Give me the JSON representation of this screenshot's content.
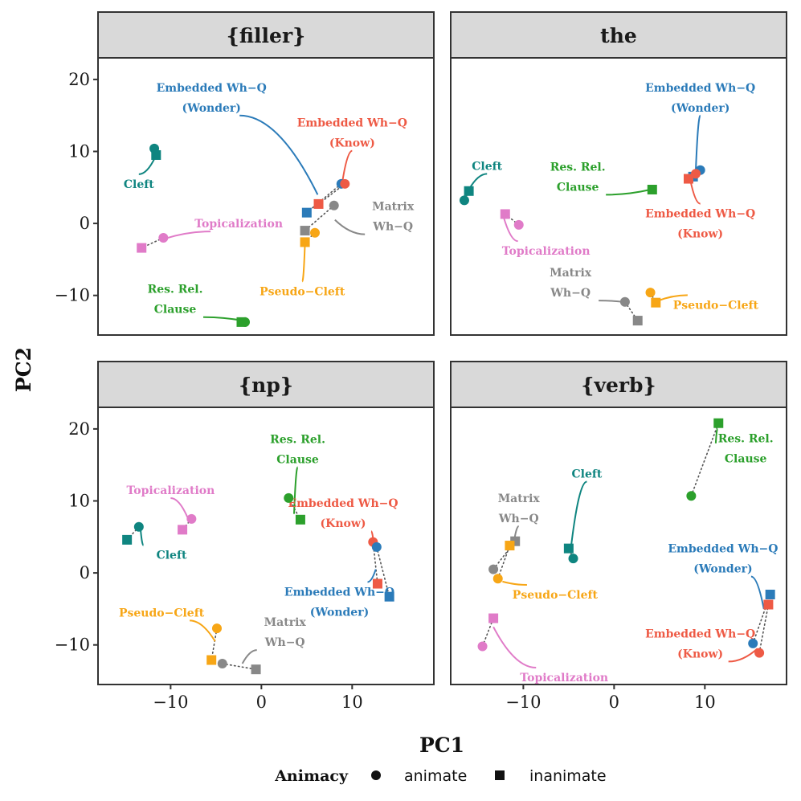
{
  "chart_data": {
    "type": "scatter",
    "xlabel": "PC1",
    "ylabel": "PC2",
    "xlim": [
      -18,
      19
    ],
    "ylim": [
      -15.5,
      23
    ],
    "x_ticks": [
      -10,
      0,
      10
    ],
    "y_ticks": [
      -10,
      0,
      10,
      20
    ],
    "tick_labels": {
      "x": [
        "−10",
        "0",
        "10"
      ],
      "y": [
        "−10",
        "0",
        "10",
        "20"
      ]
    },
    "legend": {
      "title": "Animacy",
      "position": "bottom",
      "items": [
        {
          "label": "animate",
          "shape": "circle"
        },
        {
          "label": "inanimate",
          "shape": "square"
        }
      ]
    },
    "colors": {
      "Embedded Wh-Q (Wonder)": "#2B7BB9",
      "Embedded Wh-Q (Know)": "#EE5A45",
      "Matrix Wh-Q": "#888888",
      "Pseudo-Cleft": "#F7A616",
      "Res. Rel. Clause": "#2CA02C",
      "Topicalization": "#E07BC8",
      "Cleft": "#0F8580"
    },
    "panels": [
      {
        "title": "{filler}",
        "points": [
          {
            "construction": "Cleft",
            "animacy": "animate",
            "x": -11.8,
            "y": 10.4
          },
          {
            "construction": "Cleft",
            "animacy": "inanimate",
            "x": -11.6,
            "y": 9.5
          },
          {
            "construction": "Topicalization",
            "animacy": "animate",
            "x": -10.8,
            "y": -2.0
          },
          {
            "construction": "Topicalization",
            "animacy": "inanimate",
            "x": -13.2,
            "y": -3.4
          },
          {
            "construction": "Res. Rel. Clause",
            "animacy": "animate",
            "x": -1.8,
            "y": -13.7
          },
          {
            "construction": "Res. Rel. Clause",
            "animacy": "inanimate",
            "x": -2.2,
            "y": -13.7
          },
          {
            "construction": "Embedded Wh-Q (Wonder)",
            "animacy": "animate",
            "x": 8.8,
            "y": 5.5
          },
          {
            "construction": "Embedded Wh-Q (Wonder)",
            "animacy": "inanimate",
            "x": 5.0,
            "y": 1.5
          },
          {
            "construction": "Embedded Wh-Q (Know)",
            "animacy": "animate",
            "x": 9.2,
            "y": 5.5
          },
          {
            "construction": "Embedded Wh-Q (Know)",
            "animacy": "inanimate",
            "x": 6.3,
            "y": 2.7
          },
          {
            "construction": "Matrix Wh-Q",
            "animacy": "animate",
            "x": 8.0,
            "y": 2.5
          },
          {
            "construction": "Matrix Wh-Q",
            "animacy": "inanimate",
            "x": 4.8,
            "y": -1.0
          },
          {
            "construction": "Pseudo-Cleft",
            "animacy": "animate",
            "x": 5.9,
            "y": -1.3
          },
          {
            "construction": "Pseudo-Cleft",
            "animacy": "inanimate",
            "x": 4.8,
            "y": -2.6
          }
        ],
        "labels": [
          {
            "construction": "Embedded Wh-Q (Wonder)",
            "lines": [
              "Embedded Wh−Q",
              "(Wonder)"
            ],
            "x": -5.5,
            "y": 17.5,
            "ax": 6.2,
            "ay": 4.0
          },
          {
            "construction": "Embedded Wh-Q (Know)",
            "lines": [
              "Embedded Wh−Q",
              "(Know)"
            ],
            "x": 10.0,
            "y": 12.6,
            "ax": 8.9,
            "ay": 5.6
          },
          {
            "construction": "Cleft",
            "lines": [
              "Cleft"
            ],
            "x": -13.5,
            "y": 5.5,
            "ax": -11.7,
            "ay": 9.2
          },
          {
            "construction": "Topicalization",
            "lines": [
              "Topicalization"
            ],
            "x": -2.5,
            "y": 0.0,
            "ax": -10.6,
            "ay": -2.1
          },
          {
            "construction": "Matrix Wh-Q",
            "lines": [
              "Matrix",
              "Wh−Q"
            ],
            "x": 14.5,
            "y": 1.0,
            "ax": 8.1,
            "ay": 0.5
          },
          {
            "construction": "Pseudo-Cleft",
            "lines": [
              "Pseudo−Cleft"
            ],
            "x": 4.5,
            "y": -9.4,
            "ax": 4.8,
            "ay": -2.8
          },
          {
            "construction": "Res. Rel. Clause",
            "lines": [
              "Res. Rel.",
              "Clause"
            ],
            "x": -9.5,
            "y": -10.5,
            "ax": -2.0,
            "ay": -13.5
          }
        ]
      },
      {
        "title": "the",
        "points": [
          {
            "construction": "Cleft",
            "animacy": "animate",
            "x": -16.5,
            "y": 3.2
          },
          {
            "construction": "Cleft",
            "animacy": "inanimate",
            "x": -16.0,
            "y": 4.5
          },
          {
            "construction": "Topicalization",
            "animacy": "animate",
            "x": -10.5,
            "y": -0.2
          },
          {
            "construction": "Topicalization",
            "animacy": "inanimate",
            "x": -12.0,
            "y": 1.3
          },
          {
            "construction": "Res. Rel. Clause",
            "animacy": "inanimate",
            "x": 4.2,
            "y": 4.7
          },
          {
            "construction": "Embedded Wh-Q (Wonder)",
            "animacy": "animate",
            "x": 9.5,
            "y": 7.4
          },
          {
            "construction": "Embedded Wh-Q (Wonder)",
            "animacy": "inanimate",
            "x": 8.7,
            "y": 6.5
          },
          {
            "construction": "Embedded Wh-Q (Know)",
            "animacy": "animate",
            "x": 9.0,
            "y": 6.9
          },
          {
            "construction": "Embedded Wh-Q (Know)",
            "animacy": "inanimate",
            "x": 8.2,
            "y": 6.2
          },
          {
            "construction": "Matrix Wh-Q",
            "animacy": "animate",
            "x": 1.2,
            "y": -10.9
          },
          {
            "construction": "Matrix Wh-Q",
            "animacy": "inanimate",
            "x": 2.6,
            "y": -13.5
          },
          {
            "construction": "Pseudo-Cleft",
            "animacy": "animate",
            "x": 4.0,
            "y": -9.6
          },
          {
            "construction": "Pseudo-Cleft",
            "animacy": "inanimate",
            "x": 4.6,
            "y": -11.0
          }
        ],
        "labels": [
          {
            "construction": "Embedded Wh-Q (Wonder)",
            "lines": [
              "Embedded Wh−Q",
              "(Wonder)"
            ],
            "x": 9.5,
            "y": 17.5,
            "ax": 9.0,
            "ay": 7.4
          },
          {
            "construction": "Embedded Wh-Q (Know)",
            "lines": [
              "Embedded Wh−Q",
              "(Know)"
            ],
            "x": 9.5,
            "y": 0.0,
            "ax": 8.4,
            "ay": 6.0
          },
          {
            "construction": "Cleft",
            "lines": [
              "Cleft"
            ],
            "x": -14.0,
            "y": 8.0,
            "ax": -16.0,
            "ay": 4.7
          },
          {
            "construction": "Res. Rel. Clause",
            "lines": [
              "Res. Rel.",
              "Clause"
            ],
            "x": -4.0,
            "y": 6.5,
            "ax": 4.0,
            "ay": 4.7
          },
          {
            "construction": "Topicalization",
            "lines": [
              "Topicalization"
            ],
            "x": -7.5,
            "y": -3.8,
            "ax": -12.2,
            "ay": 1.0
          },
          {
            "construction": "Matrix Wh-Q",
            "lines": [
              "Matrix",
              "Wh−Q"
            ],
            "x": -4.8,
            "y": -8.2,
            "ax": 1.0,
            "ay": -10.9
          },
          {
            "construction": "Pseudo-Cleft",
            "lines": [
              "Pseudo−Cleft"
            ],
            "x": 11.2,
            "y": -11.3,
            "ax": 4.7,
            "ay": -10.8
          }
        ]
      },
      {
        "title": "{np}",
        "points": [
          {
            "construction": "Cleft",
            "animacy": "animate",
            "x": -13.5,
            "y": 6.4
          },
          {
            "construction": "Cleft",
            "animacy": "inanimate",
            "x": -14.8,
            "y": 4.6
          },
          {
            "construction": "Topicalization",
            "animacy": "animate",
            "x": -7.7,
            "y": 7.5
          },
          {
            "construction": "Topicalization",
            "animacy": "inanimate",
            "x": -8.7,
            "y": 6.0
          },
          {
            "construction": "Res. Rel. Clause",
            "animacy": "animate",
            "x": 3.0,
            "y": 10.4
          },
          {
            "construction": "Res. Rel. Clause",
            "animacy": "inanimate",
            "x": 4.3,
            "y": 7.4
          },
          {
            "construction": "Embedded Wh-Q (Know)",
            "animacy": "animate",
            "x": 12.3,
            "y": 4.3
          },
          {
            "construction": "Embedded Wh-Q (Know)",
            "animacy": "inanimate",
            "x": 12.8,
            "y": -1.5
          },
          {
            "construction": "Embedded Wh-Q (Wonder)",
            "animacy": "animate",
            "x": 12.7,
            "y": 3.6
          },
          {
            "construction": "Embedded Wh-Q (Wonder)",
            "animacy": "inanimate",
            "x": 14.1,
            "y": -3.3
          },
          {
            "construction": "Pseudo-Cleft",
            "animacy": "animate",
            "x": -4.9,
            "y": -7.7
          },
          {
            "construction": "Pseudo-Cleft",
            "animacy": "inanimate",
            "x": -5.5,
            "y": -12.1
          },
          {
            "construction": "Matrix Wh-Q",
            "animacy": "animate",
            "x": -4.3,
            "y": -12.6
          },
          {
            "construction": "Matrix Wh-Q",
            "animacy": "inanimate",
            "x": -0.6,
            "y": -13.4
          }
        ],
        "labels": [
          {
            "construction": "Res. Rel. Clause",
            "lines": [
              "Res. Rel.",
              "Clause"
            ],
            "x": 4.0,
            "y": 17.2,
            "ax": 3.6,
            "ay": 8.2
          },
          {
            "construction": "Topicalization",
            "lines": [
              "Topicalization"
            ],
            "x": -10.0,
            "y": 11.5,
            "ax": -8.0,
            "ay": 7.3
          },
          {
            "construction": "Embedded Wh-Q (Know)",
            "lines": [
              "Embedded Wh−Q",
              "(Know)"
            ],
            "x": 9.0,
            "y": 8.3,
            "ax": 12.4,
            "ay": 3.6
          },
          {
            "construction": "Cleft",
            "lines": [
              "Cleft"
            ],
            "x": -9.9,
            "y": 2.5,
            "ax": -13.3,
            "ay": 5.9
          },
          {
            "construction": "Embedded Wh-Q (Wonder)",
            "lines": [
              "Embedded Wh−Q",
              "(Wonder)"
            ],
            "x": 8.6,
            "y": -4.0,
            "ax": 12.6,
            "ay": 0.5
          },
          {
            "construction": "Pseudo-Cleft",
            "lines": [
              "Pseudo−Cleft"
            ],
            "x": -11.0,
            "y": -5.5,
            "ax": -5.1,
            "ay": -9.5
          },
          {
            "construction": "Matrix Wh-Q",
            "lines": [
              "Matrix",
              "Wh−Q"
            ],
            "x": 2.6,
            "y": -8.2,
            "ax": -2.1,
            "ay": -12.6
          }
        ]
      },
      {
        "title": "{verb}",
        "points": [
          {
            "construction": "Res. Rel. Clause",
            "animacy": "animate",
            "x": 8.5,
            "y": 10.7
          },
          {
            "construction": "Res. Rel. Clause",
            "animacy": "inanimate",
            "x": 11.5,
            "y": 20.8
          },
          {
            "construction": "Cleft",
            "animacy": "animate",
            "x": -4.5,
            "y": 2.0
          },
          {
            "construction": "Cleft",
            "animacy": "inanimate",
            "x": -5.0,
            "y": 3.4
          },
          {
            "construction": "Matrix Wh-Q",
            "animacy": "animate",
            "x": -13.3,
            "y": 0.5
          },
          {
            "construction": "Matrix Wh-Q",
            "animacy": "inanimate",
            "x": -10.9,
            "y": 4.4
          },
          {
            "construction": "Pseudo-Cleft",
            "animacy": "animate",
            "x": -12.8,
            "y": -0.8
          },
          {
            "construction": "Pseudo-Cleft",
            "animacy": "inanimate",
            "x": -11.5,
            "y": 3.8
          },
          {
            "construction": "Topicalization",
            "animacy": "animate",
            "x": -14.5,
            "y": -10.2
          },
          {
            "construction": "Topicalization",
            "animacy": "inanimate",
            "x": -13.3,
            "y": -6.3
          },
          {
            "construction": "Embedded Wh-Q (Wonder)",
            "animacy": "animate",
            "x": 15.3,
            "y": -9.8
          },
          {
            "construction": "Embedded Wh-Q (Wonder)",
            "animacy": "inanimate",
            "x": 17.2,
            "y": -3.0
          },
          {
            "construction": "Embedded Wh-Q (Know)",
            "animacy": "animate",
            "x": 16.0,
            "y": -11.1
          },
          {
            "construction": "Embedded Wh-Q (Know)",
            "animacy": "inanimate",
            "x": 17.0,
            "y": -4.4
          }
        ],
        "labels": [
          {
            "construction": "Res. Rel. Clause",
            "lines": [
              "Res. Rel.",
              "Clause"
            ],
            "x": 14.5,
            "y": 17.3,
            "ax": 11.2,
            "ay": 18.0
          },
          {
            "construction": "Cleft",
            "lines": [
              "Cleft"
            ],
            "x": -3.0,
            "y": 13.8,
            "ax": -4.8,
            "ay": 3.0
          },
          {
            "construction": "Matrix Wh-Q",
            "lines": [
              "Matrix",
              "Wh−Q"
            ],
            "x": -10.5,
            "y": 9.0,
            "ax": -11.1,
            "ay": 3.7
          },
          {
            "construction": "Embedded Wh-Q (Wonder)",
            "lines": [
              "Embedded Wh−Q",
              "(Wonder)"
            ],
            "x": 12.0,
            "y": 2.0,
            "ax": 16.5,
            "ay": -5.0
          },
          {
            "construction": "Pseudo-Cleft",
            "lines": [
              "Pseudo−Cleft"
            ],
            "x": -6.5,
            "y": -3.0,
            "ax": -12.3,
            "ay": -1.2
          },
          {
            "construction": "Topicalization",
            "lines": [
              "Topicalization"
            ],
            "x": -5.5,
            "y": -14.5,
            "ax": -13.3,
            "ay": -7.5
          },
          {
            "construction": "Embedded Wh-Q (Know)",
            "lines": [
              "Embedded Wh−Q",
              "(Know)"
            ],
            "x": 9.5,
            "y": -9.8,
            "ax": 15.8,
            "ay": -10.5
          }
        ]
      }
    ]
  }
}
